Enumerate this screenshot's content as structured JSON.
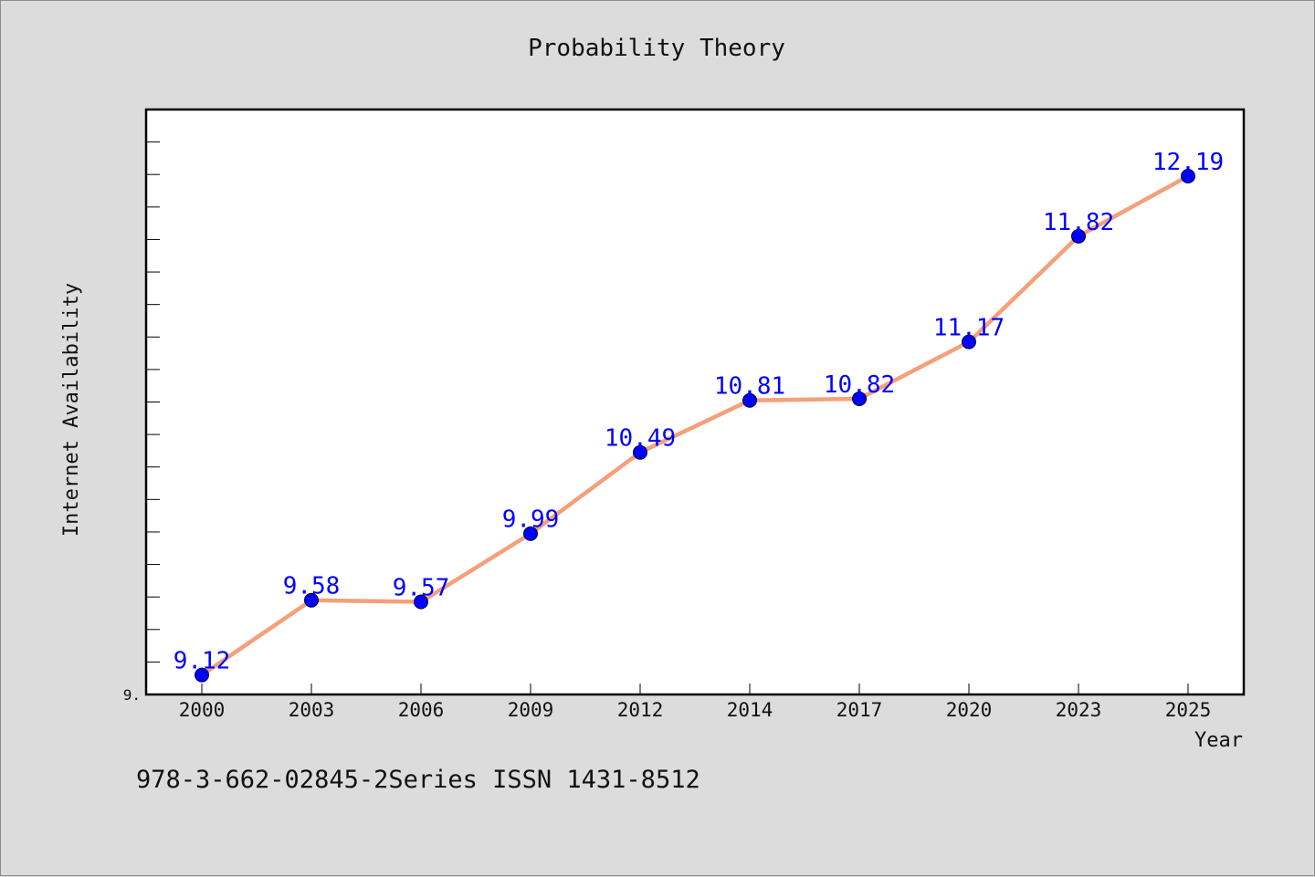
{
  "chart_data": {
    "type": "line",
    "title": "Probability Theory",
    "xlabel": "Year",
    "ylabel": "Internet Availability",
    "categories": [
      "2000",
      "2003",
      "2006",
      "2009",
      "2012",
      "2014",
      "2017",
      "2020",
      "2023",
      "2025"
    ],
    "series": [
      {
        "values": [
          9.12,
          9.58,
          9.57,
          9.99,
          10.49,
          10.81,
          10.82,
          11.17,
          11.82,
          12.19
        ],
        "labels": [
          "9.12",
          "9.58",
          "9.57",
          "9.99",
          "10.49",
          "10.81",
          "10.82",
          "11.17",
          "11.82",
          "12.19"
        ],
        "line_color": "#f4a07a",
        "marker_color": "#0000ff"
      }
    ],
    "y_tick_labels": [
      "9."
    ],
    "ylim": [
      9.0,
      12.6
    ],
    "grid": false,
    "legend": "none"
  },
  "footer_text": "978-3-662-02845-2Series ISSN 1431-8512"
}
